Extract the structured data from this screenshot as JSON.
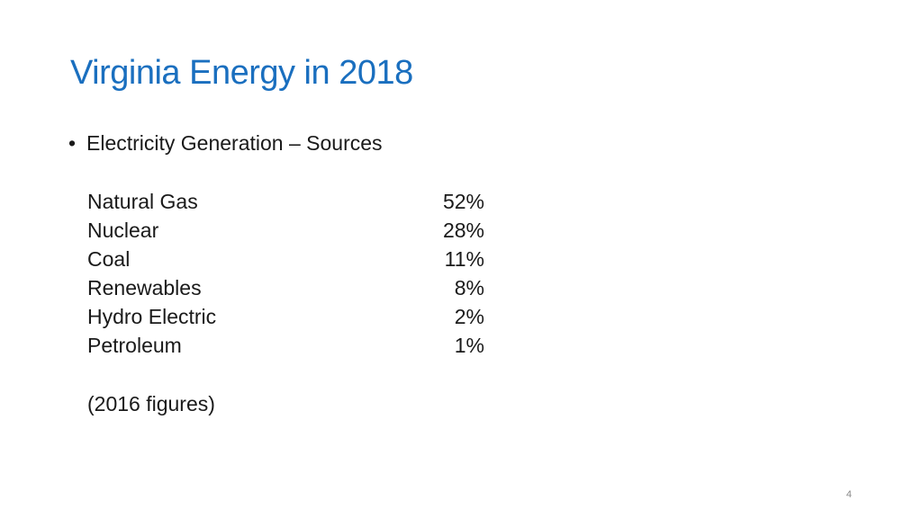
{
  "slide": {
    "title": "Virginia Energy in 2018",
    "bullet_marker": "•",
    "bullet_text": "Electricity Generation – Sources",
    "sources": [
      {
        "name": "Natural Gas",
        "percent": "52%"
      },
      {
        "name": "Nuclear",
        "percent": "28%"
      },
      {
        "name": "Coal",
        "percent": "11%"
      },
      {
        "name": "Renewables",
        "percent": "8%"
      },
      {
        "name": "Hydro Electric",
        "percent": "2%"
      },
      {
        "name": "Petroleum",
        "percent": "1%"
      }
    ],
    "note": "(2016 figures)",
    "page_number": "4"
  },
  "colors": {
    "title": "#1a6fbf",
    "body_text": "#1a1a1a",
    "page_number": "#888888"
  }
}
